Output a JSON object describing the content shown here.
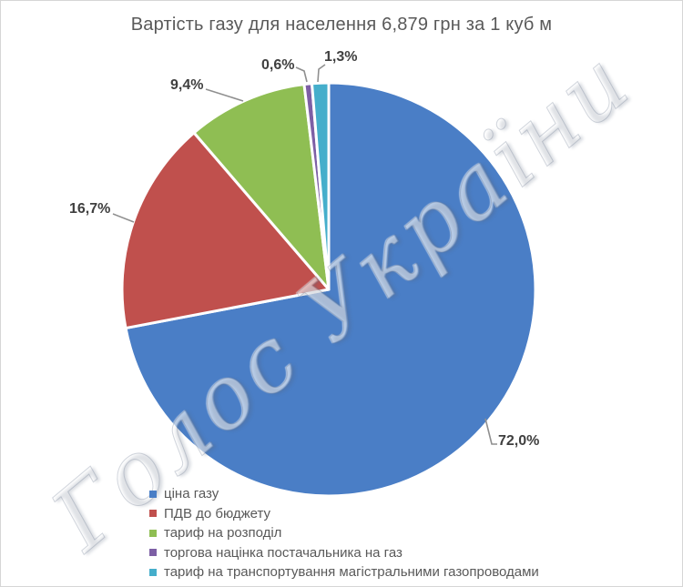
{
  "title": "Вартість газу для населення 6,879 грн за 1 куб м",
  "watermark": {
    "text": "Голос України"
  },
  "colors": {
    "title_text": "#595959",
    "legend_text": "#595959",
    "label_text": "#3f3f3f",
    "leader_line": "#8f8f8f",
    "slice_border": "#ffffff"
  },
  "chart_data": {
    "type": "pie",
    "title": "Вартість газу для населення 6,879 грн за 1 куб м",
    "start_angle_deg": 0,
    "direction": "clockwise",
    "legend_position": "bottom-left",
    "data_labels": "outside, percent with comma decimal",
    "slices": [
      {
        "name": "ціна газу",
        "value": 72.0,
        "label": "72,0%",
        "color": "#4A7EC6"
      },
      {
        "name": "ПДВ до бюджету",
        "value": 16.7,
        "label": "16,7%",
        "color": "#C0504D"
      },
      {
        "name": "тариф на розподіл",
        "value": 9.4,
        "label": "9,4%",
        "color": "#8FBE53"
      },
      {
        "name": "торгова націнка постачальника на газ",
        "value": 0.6,
        "label": "0,6%",
        "color": "#7D5FA5"
      },
      {
        "name": "тариф на транспортування магістральними газопроводами",
        "value": 1.3,
        "label": "1,3%",
        "color": "#45AECB"
      }
    ]
  }
}
